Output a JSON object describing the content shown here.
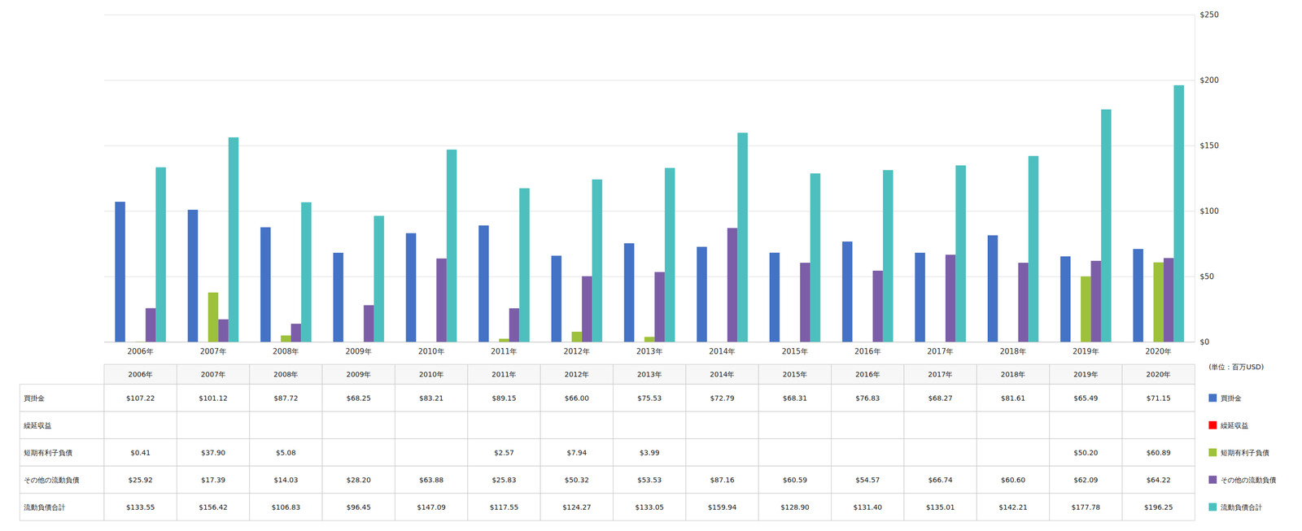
{
  "chart_data": {
    "type": "bar",
    "ylabel": "(単位：百万USD)",
    "categories": [
      "2006年",
      "2007年",
      "2008年",
      "2009年",
      "2010年",
      "2011年",
      "2012年",
      "2013年",
      "2014年",
      "2015年",
      "2016年",
      "2017年",
      "2018年",
      "2019年",
      "2020年"
    ],
    "series": [
      {
        "name": "買掛金",
        "color": "#4472C4",
        "values": [
          107.22,
          101.12,
          87.72,
          68.25,
          83.21,
          89.15,
          66.0,
          75.53,
          72.79,
          68.31,
          76.83,
          68.27,
          81.61,
          65.49,
          71.15
        ],
        "value_labels": [
          "$107.22",
          "$101.12",
          "$87.72",
          "$68.25",
          "$83.21",
          "$89.15",
          "$66.00",
          "$75.53",
          "$72.79",
          "$68.31",
          "$76.83",
          "$68.27",
          "$81.61",
          "$65.49",
          "$71.15"
        ]
      },
      {
        "name": "繰延収益",
        "color": "#FF0000",
        "values": [
          0,
          0,
          0,
          0,
          0,
          0,
          0,
          0,
          0,
          0,
          0,
          0,
          0,
          0,
          0
        ],
        "value_labels": [
          null,
          null,
          null,
          null,
          null,
          null,
          null,
          null,
          null,
          null,
          null,
          null,
          null,
          null,
          null
        ]
      },
      {
        "name": "短期有利子負債",
        "color": "#9DC13B",
        "values": [
          0.41,
          37.9,
          5.08,
          0,
          0,
          2.57,
          7.94,
          3.99,
          0,
          0,
          0,
          0,
          0,
          50.2,
          60.89
        ],
        "value_labels": [
          "$0.41",
          "$37.90",
          "$5.08",
          null,
          null,
          "$2.57",
          "$7.94",
          "$3.99",
          null,
          null,
          null,
          null,
          null,
          "$50.20",
          "$60.89"
        ]
      },
      {
        "name": "その他の流動負債",
        "color": "#7B5EA7",
        "values": [
          25.92,
          17.39,
          14.03,
          28.2,
          63.88,
          25.83,
          50.32,
          53.53,
          87.16,
          60.59,
          54.57,
          66.74,
          60.6,
          62.09,
          64.22
        ],
        "value_labels": [
          "$25.92",
          "$17.39",
          "$14.03",
          "$28.20",
          "$63.88",
          "$25.83",
          "$50.32",
          "$53.53",
          "$87.16",
          "$60.59",
          "$54.57",
          "$66.74",
          "$60.60",
          "$62.09",
          "$64.22"
        ]
      },
      {
        "name": "流動負債合計",
        "color": "#4DBFBF",
        "values": [
          133.55,
          156.42,
          106.83,
          96.45,
          147.09,
          117.55,
          124.27,
          133.05,
          159.94,
          128.9,
          131.4,
          135.01,
          142.21,
          177.78,
          196.25
        ],
        "value_labels": [
          "$133.55",
          "$156.42",
          "$106.83",
          "$96.45",
          "$147.09",
          "$117.55",
          "$124.27",
          "$133.05",
          "$159.94",
          "$128.90",
          "$131.40",
          "$135.01",
          "$142.21",
          "$177.78",
          "$196.25"
        ]
      }
    ],
    "ylim": [
      0,
      250
    ],
    "yticks": [
      {
        "value": 0,
        "label": "$0"
      },
      {
        "value": 50,
        "label": "$50"
      },
      {
        "value": 100,
        "label": "$100"
      },
      {
        "value": 150,
        "label": "$150"
      },
      {
        "value": 200,
        "label": "$200"
      },
      {
        "value": 250,
        "label": "$250"
      }
    ],
    "grid": true,
    "legend": "right"
  }
}
